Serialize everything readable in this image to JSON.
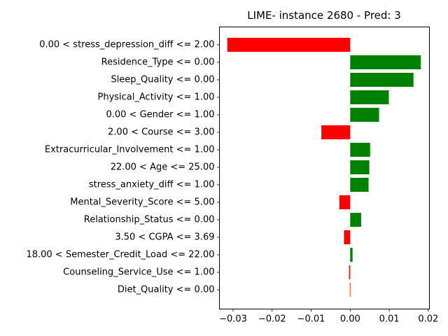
{
  "chart_data": {
    "type": "bar",
    "orientation": "horizontal",
    "title": "LIME- instance 2680 - Pred: 3",
    "xlabel": "",
    "ylabel": "",
    "xlim": [
      -0.0335,
      0.0203
    ],
    "xticks": [
      -0.03,
      -0.02,
      -0.01,
      0.0,
      0.01,
      0.02
    ],
    "xtick_labels": [
      "−0.03",
      "−0.02",
      "−0.01",
      "0.00",
      "0.01",
      "0.02"
    ],
    "grid": false,
    "colors": {
      "positive": "#008000",
      "negative": "#ff0000"
    },
    "categories": [
      "0.00 < stress_depression_diff <= 2.00",
      "Residence_Type <= 0.00",
      "Sleep_Quality <= 0.00",
      "Physical_Activity <= 1.00",
      "0.00 < Gender <= 1.00",
      "2.00 < Course <= 3.00",
      "Extracurricular_Involvement <= 1.00",
      "22.00 < Age <= 25.00",
      "stress_anxiety_diff <= 1.00",
      "Mental_Severity_Score <= 5.00",
      "Relationship_Status <= 0.00",
      "3.50 < CGPA <= 3.69",
      "18.00 < Semester_Credit_Load <= 22.00",
      "Counseling_Service_Use <= 1.00",
      "Diet_Quality <= 0.00"
    ],
    "values": [
      -0.0315,
      0.0181,
      0.0162,
      0.0099,
      0.0074,
      -0.0074,
      0.0051,
      0.0049,
      0.0047,
      -0.0028,
      0.0028,
      -0.0016,
      0.0006,
      -0.0003,
      -0.0001
    ]
  }
}
